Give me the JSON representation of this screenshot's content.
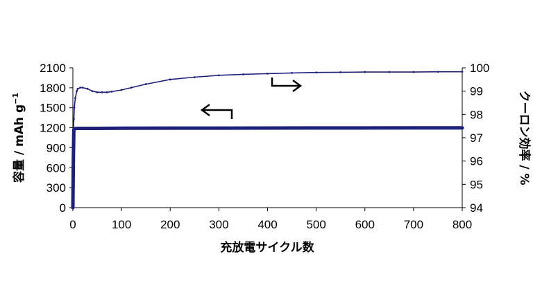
{
  "chart_data": {
    "type": "line",
    "title": "",
    "xlabel": "充放電サイクル数",
    "ylabel_left": "容量 / mAh g",
    "ylabel_left_sup": "−1",
    "ylabel_right": "クーロン効率 / %",
    "xlim": [
      0,
      800
    ],
    "ylim_left": [
      0,
      2100
    ],
    "ylim_right": [
      94,
      100
    ],
    "x_ticks": [
      "0",
      "100",
      "200",
      "300",
      "400",
      "500",
      "600",
      "700",
      "800"
    ],
    "y_left_ticks": [
      "0",
      "300",
      "600",
      "900",
      "1200",
      "1500",
      "1800",
      "2100"
    ],
    "y_right_ticks": [
      "94",
      "95",
      "96",
      "97",
      "98",
      "99",
      "100"
    ],
    "grid": false,
    "series": [
      {
        "axis": "left",
        "color": "#1f1f7a",
        "x": [
          0,
          1,
          2,
          3,
          5,
          10,
          50,
          100,
          200,
          300,
          400,
          500,
          600,
          700,
          800
        ],
        "y": [
          0,
          720,
          1170,
          1185,
          1188,
          1190,
          1190,
          1192,
          1195,
          1195,
          1196,
          1197,
          1197,
          1198,
          1198
        ]
      },
      {
        "axis": "right",
        "color": "#1f1f7a",
        "x": [
          0,
          1,
          2,
          3,
          5,
          8,
          10,
          15,
          20,
          30,
          40,
          50,
          60,
          70,
          80,
          100,
          120,
          150,
          200,
          250,
          300,
          350,
          400,
          450,
          500,
          550,
          600,
          650,
          700,
          750,
          800
        ],
        "y": [
          97.1,
          97.3,
          97.8,
          98.3,
          98.7,
          99.0,
          99.1,
          99.15,
          99.15,
          99.1,
          99.0,
          98.95,
          98.95,
          98.95,
          98.98,
          99.05,
          99.15,
          99.3,
          99.5,
          99.6,
          99.68,
          99.72,
          99.75,
          99.78,
          99.8,
          99.81,
          99.82,
          99.82,
          99.82,
          99.83,
          99.83
        ]
      }
    ]
  }
}
